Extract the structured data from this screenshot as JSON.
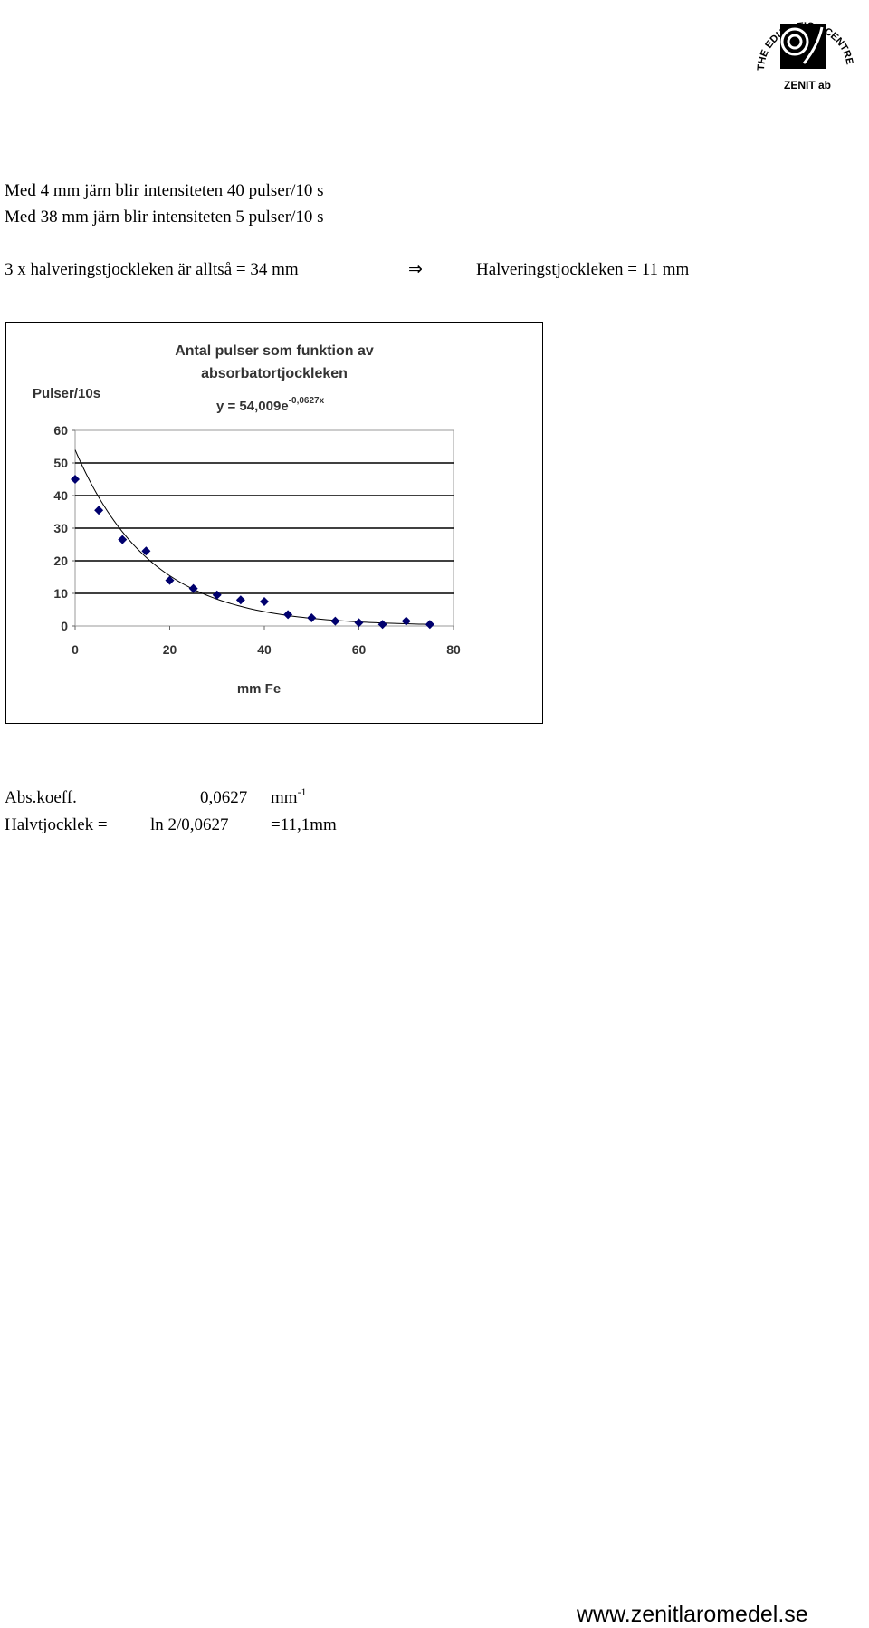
{
  "logo": {
    "ring_text": "THE EDUCATION CENTRE OF SMÖGEN",
    "name": "ZENIT ab"
  },
  "lines": [
    "Med 4 mm järn blir intensiteten 40 pulser/10 s",
    "Med 38 mm järn blir intensiteten 5 pulser/10 s"
  ],
  "conclusion": {
    "left": "3 x halveringstjockleken är alltså = 34 mm",
    "arrow": "⇒",
    "right": "Halveringstjockleken = 11 mm"
  },
  "chart_data": {
    "type": "scatter",
    "title": [
      "Antal pulser som funktion av",
      "absorbatortjockleken"
    ],
    "ylabel": "Pulser/10s",
    "xlabel": "mm Fe",
    "x": [
      0,
      5,
      10,
      15,
      20,
      25,
      30,
      35,
      40,
      45,
      50,
      55,
      60,
      65,
      70,
      75
    ],
    "values": [
      45,
      35.5,
      26.5,
      23,
      14,
      11.5,
      9.5,
      8,
      7.5,
      3.5,
      2.5,
      1.5,
      1,
      0.5,
      1.5,
      0.5
    ],
    "color": "#00006e",
    "xlim": [
      0,
      80
    ],
    "xticks": [
      0,
      20,
      40,
      60,
      80
    ],
    "ylim": [
      0,
      60
    ],
    "yticks": [
      0,
      10,
      20,
      30,
      40,
      50,
      60
    ],
    "grid": true,
    "trendline": {
      "equation": "y = 54,009e",
      "exponent": "-0,0627x",
      "a": 54.009,
      "k": -0.0627,
      "color": "#000000"
    }
  },
  "results": {
    "abs": {
      "label": "Abs.koeff.",
      "value": "0,0627",
      "unit": "mm",
      "unit_exponent": "-1"
    },
    "half": {
      "label": "Halvtjocklek =",
      "formula": "ln 2/0,0627",
      "result": "=11,1mm"
    }
  },
  "footer": "www.zenitlaromedel.se"
}
